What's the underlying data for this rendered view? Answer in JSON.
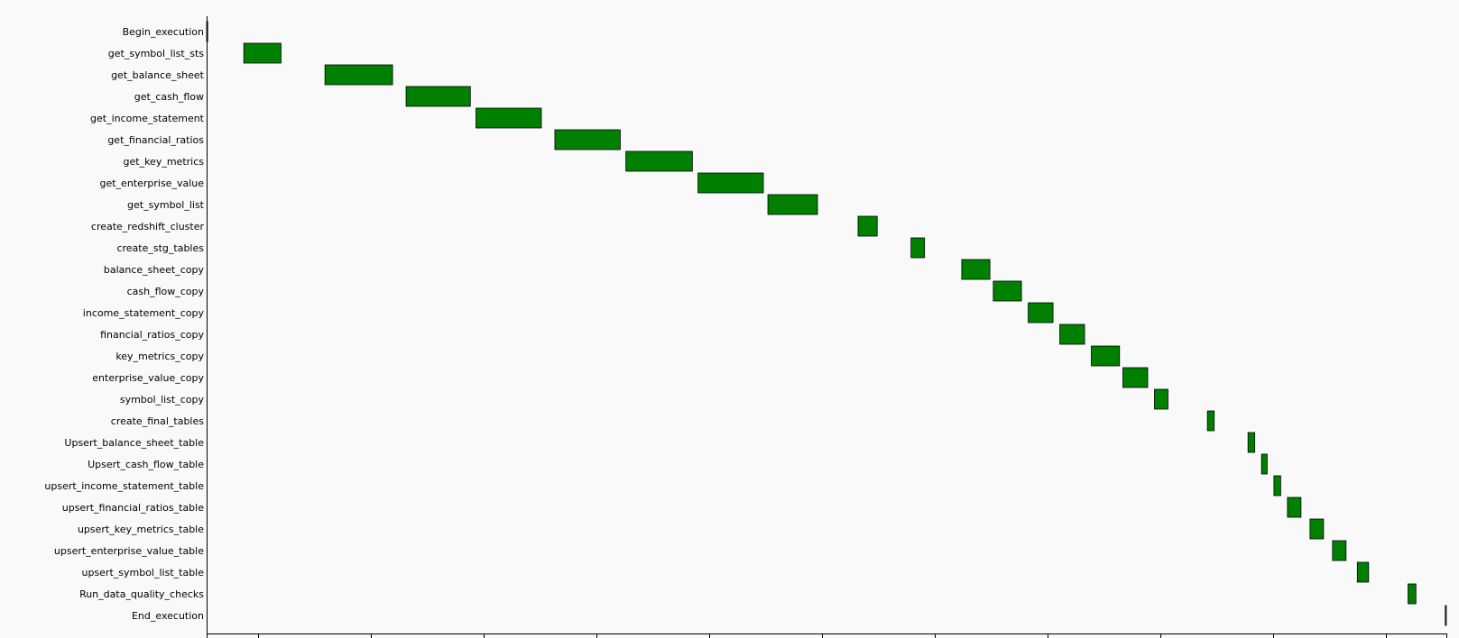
{
  "chart_data": {
    "type": "gantt",
    "title": "",
    "xlabel": "",
    "ylabel": "",
    "grid": false,
    "colors": {
      "bar": "#008000",
      "bar_edge": "#000000",
      "background": "#f9f9f9"
    },
    "xlim": [
      0,
      1100
    ],
    "x_ticks": [
      46,
      146,
      246,
      346,
      446,
      546,
      646,
      746,
      846,
      946,
      1046
    ],
    "tasks": [
      {
        "name": "Begin_execution",
        "start": 0,
        "end": 0.5
      },
      {
        "name": "get_symbol_list_sts",
        "start": 33,
        "end": 66
      },
      {
        "name": "get_balance_sheet",
        "start": 105,
        "end": 165
      },
      {
        "name": "get_cash_flow",
        "start": 177,
        "end": 234
      },
      {
        "name": "get_income_statement",
        "start": 239,
        "end": 297
      },
      {
        "name": "get_financial_ratios",
        "start": 309,
        "end": 367
      },
      {
        "name": "get_key_metrics",
        "start": 372,
        "end": 431
      },
      {
        "name": "get_enterprise_value",
        "start": 436,
        "end": 494
      },
      {
        "name": "get_symbol_list",
        "start": 498,
        "end": 542
      },
      {
        "name": "create_redshift_cluster",
        "start": 578,
        "end": 595
      },
      {
        "name": "create_stg_tables",
        "start": 625,
        "end": 637
      },
      {
        "name": "balance_sheet_copy",
        "start": 670,
        "end": 695
      },
      {
        "name": "cash_flow_copy",
        "start": 698,
        "end": 723
      },
      {
        "name": "income_statement_copy",
        "start": 729,
        "end": 751
      },
      {
        "name": "financial_ratios_copy",
        "start": 757,
        "end": 779
      },
      {
        "name": "key_metrics_copy",
        "start": 785,
        "end": 810
      },
      {
        "name": "enterprise_value_copy",
        "start": 813,
        "end": 835
      },
      {
        "name": "symbol_list_copy",
        "start": 841,
        "end": 853
      },
      {
        "name": "create_final_tables",
        "start": 888,
        "end": 894
      },
      {
        "name": "Upsert_balance_sheet_table",
        "start": 924,
        "end": 930
      },
      {
        "name": "Upsert_cash_flow_table",
        "start": 936,
        "end": 941
      },
      {
        "name": "upsert_income_statement_table",
        "start": 947,
        "end": 953
      },
      {
        "name": "upsert_financial_ratios_table",
        "start": 959,
        "end": 971
      },
      {
        "name": "upsert_key_metrics_table",
        "start": 979,
        "end": 991
      },
      {
        "name": "upsert_enterprise_value_table",
        "start": 999,
        "end": 1011
      },
      {
        "name": "upsert_symbol_list_table",
        "start": 1021,
        "end": 1031
      },
      {
        "name": "Run_data_quality_checks",
        "start": 1066,
        "end": 1073
      },
      {
        "name": "End_execution",
        "start": 1099,
        "end": 1100
      }
    ]
  }
}
